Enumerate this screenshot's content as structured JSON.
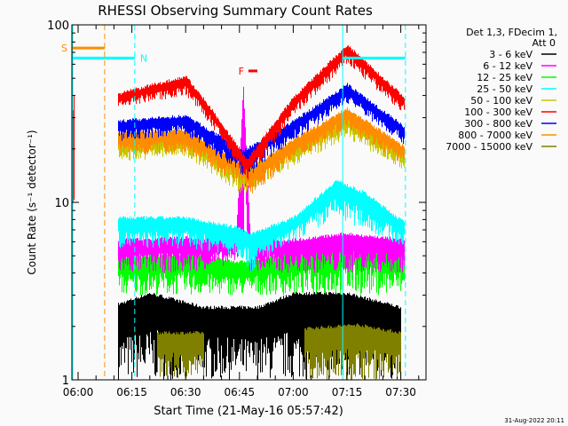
{
  "chart_data": {
    "type": "line",
    "title": "RHESSI Observing Summary Count Rates",
    "xlabel": "Start Time (21-May-16 05:57:42)",
    "ylabel": "Count Rate (s⁻¹ detector⁻¹)",
    "yscale": "log",
    "ylim": [
      1,
      100
    ],
    "xlim_minutes_after_0600": [
      -1.8,
      97
    ],
    "y_ticks": [
      {
        "v": 1,
        "label": "1"
      },
      {
        "v": 10,
        "label": "10"
      },
      {
        "v": 100,
        "label": "100"
      }
    ],
    "x_ticks": [
      {
        "t": 0,
        "label": "06:00"
      },
      {
        "t": 15,
        "label": "06:15"
      },
      {
        "t": 30,
        "label": "06:30"
      },
      {
        "t": 45,
        "label": "06:45"
      },
      {
        "t": 60,
        "label": "07:00"
      },
      {
        "t": 75,
        "label": "07:15"
      },
      {
        "t": 90,
        "label": "07:30"
      }
    ],
    "legend_header": [
      "Det 1,3, FDecim 1,",
      "Att 0"
    ],
    "legend_placement": "right",
    "series": [
      {
        "name": "3 - 6 keV",
        "color": "#000000",
        "segments": [
          [
            [
              11,
              1,
              2.6
            ],
            [
              20,
              1,
              3
            ],
            [
              35,
              1,
              2.5
            ],
            [
              50,
              1,
              2.5
            ],
            [
              60,
              1,
              3
            ],
            [
              75,
              1,
              3
            ],
            [
              90,
              1,
              2.5
            ]
          ]
        ]
      },
      {
        "name": "7000 - 15000 keV",
        "color": "#808000",
        "segments": [
          [
            [
              22,
              1,
              1.8
            ],
            [
              35,
              1,
              1.8
            ]
          ],
          [
            [
              63,
              1,
              1.9
            ],
            [
              78,
              1,
              2
            ],
            [
              90,
              1,
              1.8
            ]
          ]
        ]
      },
      {
        "name": "12 - 25 keV",
        "color": "#00ff00",
        "segments": [
          [
            [
              11,
              3,
              4.8
            ],
            [
              30,
              3,
              5
            ],
            [
              45,
              3,
              4.5
            ],
            [
              60,
              3,
              5
            ],
            [
              75,
              3,
              6
            ],
            [
              91,
              3,
              5
            ]
          ]
        ]
      },
      {
        "name": "6 - 12 keV",
        "color": "#ff00ff",
        "segments": [
          [
            [
              11,
              4,
              6
            ],
            [
              30,
              4,
              6.2
            ],
            [
              44,
              4.5,
              6
            ],
            [
              46,
              5,
              45
            ],
            [
              48,
              4,
              6
            ],
            [
              60,
              4,
              6
            ],
            [
              75,
              4,
              6.5
            ],
            [
              91,
              4,
              6
            ]
          ]
        ]
      },
      {
        "name": "25 - 50 keV",
        "color": "#00ffff",
        "segments": [
          [
            [
              11,
              5.5,
              8
            ],
            [
              30,
              5.5,
              8
            ],
            [
              45,
              5,
              7
            ],
            [
              48,
              4,
              6.5
            ],
            [
              60,
              6,
              8
            ],
            [
              72,
              8,
              13
            ],
            [
              80,
              7,
              11
            ],
            [
              91,
              5.5,
              7.5
            ]
          ]
        ]
      },
      {
        "name": "50 - 100 keV",
        "color": "#c8c800",
        "segments": [
          [
            [
              11,
              17,
              22
            ],
            [
              30,
              18,
              23
            ],
            [
              46,
              11,
              15
            ],
            [
              60,
              16,
              21
            ],
            [
              75,
              23,
              30
            ],
            [
              91,
              15,
              19
            ]
          ]
        ]
      },
      {
        "name": "800 - 7000 keV",
        "color": "#ff8c00",
        "segments": [
          [
            [
              11,
              18,
              24
            ],
            [
              30,
              19,
              25
            ],
            [
              46,
              12,
              16
            ],
            [
              48,
              11,
              15
            ],
            [
              60,
              17,
              22
            ],
            [
              75,
              26,
              33
            ],
            [
              91,
              16,
              20
            ]
          ]
        ]
      },
      {
        "name": "300 - 800 keV",
        "color": "#0000ff",
        "segments": [
          [
            [
              11,
              22,
              28
            ],
            [
              30,
              24,
              30
            ],
            [
              46,
              14,
              19
            ],
            [
              60,
              22,
              28
            ],
            [
              75,
              36,
              45
            ],
            [
              91,
              21,
              26
            ]
          ]
        ]
      },
      {
        "name": "100 - 300 keV",
        "color": "#ff0000",
        "segments": [
          [
            [
              -1.6,
              5,
              30
            ],
            [
              -1,
              10,
              45
            ]
          ],
          [
            [
              11,
              34,
              40
            ],
            [
              30,
              40,
              50
            ],
            [
              37,
              27,
              33
            ],
            [
              47,
              13,
              17
            ],
            [
              60,
              30,
              38
            ],
            [
              75,
              60,
              75
            ],
            [
              91,
              31,
              38
            ]
          ]
        ]
      }
    ],
    "annotations": [
      {
        "label": "S",
        "color": "#ff8c00",
        "t0": -1.8,
        "t1": 7.4,
        "level": 74
      },
      {
        "label": "N",
        "color": "#00ffff",
        "t0": -1.8,
        "t1": 15.8,
        "level": 65
      },
      {
        "label": "N",
        "color": "#00ffff",
        "t0": 73.8,
        "t1": 91.3,
        "level": 65,
        "nolabel": true
      },
      {
        "label": "F",
        "color": "#ff0000",
        "t0": 47.5,
        "t1": 50,
        "level": 55
      }
    ],
    "vlines": [
      {
        "t": -1.5,
        "color": "#00ffff",
        "dash": false
      },
      {
        "t": 7.4,
        "color": "#ff8c00",
        "dash": true
      },
      {
        "t": 15.8,
        "color": "#00ffff",
        "dash": true
      },
      {
        "t": 73.8,
        "color": "#00ffff",
        "dash": false
      },
      {
        "t": 91.3,
        "color": "#00ffff",
        "dash": true
      }
    ]
  },
  "footer": {
    "date": "31-Aug-2022 20:11"
  }
}
